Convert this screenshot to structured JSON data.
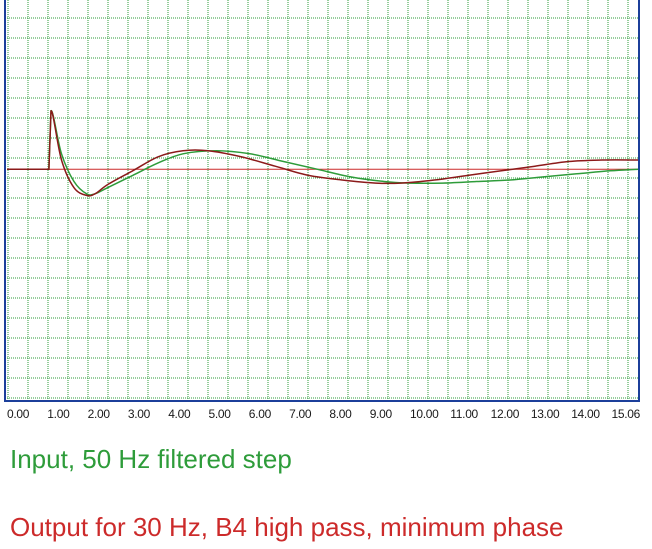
{
  "chart_data": {
    "type": "line",
    "xlim": [
      0,
      15.06
    ],
    "x_ticks": [
      "0.00",
      "1.00",
      "2.00",
      "3.00",
      "4.00",
      "5.00",
      "6.00",
      "7.00",
      "8.00",
      "9.00",
      "10.00",
      "11.00",
      "12.00",
      "13.00",
      "14.00",
      "15.06"
    ],
    "ylim": [
      -1.5,
      1.1
    ],
    "grid": true,
    "baseline": 0,
    "series": [
      {
        "name": "Input, 50 Hz filtered step",
        "color": "#2e9c3a",
        "x": [
          0,
          1.0,
          1.05,
          1.3,
          1.6,
          1.9,
          2.1,
          2.4,
          3.0,
          3.6,
          4.2,
          5.0,
          5.8,
          6.6,
          7.4,
          8.2,
          9.0,
          9.6,
          10.4,
          11.2,
          12.0,
          12.8,
          13.6,
          14.4,
          15.06
        ],
        "y": [
          0,
          0,
          0.38,
          0.1,
          -0.08,
          -0.16,
          -0.16,
          -0.12,
          -0.04,
          0.04,
          0.1,
          0.12,
          0.1,
          0.05,
          0.0,
          -0.05,
          -0.08,
          -0.09,
          -0.09,
          -0.08,
          -0.07,
          -0.05,
          -0.03,
          -0.01,
          0.0
        ]
      },
      {
        "name": "Output for 30 Hz, B4 high pass, minimum phase",
        "color": "#8b1a1a",
        "x": [
          0,
          1.0,
          1.05,
          1.3,
          1.6,
          1.9,
          2.1,
          2.4,
          3.0,
          3.6,
          4.2,
          4.8,
          5.6,
          6.4,
          7.2,
          8.0,
          8.8,
          9.4,
          10.2,
          11.0,
          11.8,
          12.6,
          13.4,
          14.2,
          15.06
        ],
        "y": [
          0,
          0,
          0.38,
          0.06,
          -0.12,
          -0.17,
          -0.16,
          -0.1,
          -0.01,
          0.08,
          0.12,
          0.12,
          0.08,
          0.02,
          -0.04,
          -0.07,
          -0.09,
          -0.09,
          -0.07,
          -0.04,
          -0.01,
          0.02,
          0.05,
          0.06,
          0.06
        ]
      },
      {
        "name": "baseline",
        "color": "#cc2a2a",
        "x": [
          0,
          15.06
        ],
        "y": [
          0,
          0
        ]
      }
    ]
  },
  "captions": {
    "input": "Input, 50 Hz filtered step",
    "output": "Output for 30 Hz, B4 high pass, minimum phase"
  }
}
